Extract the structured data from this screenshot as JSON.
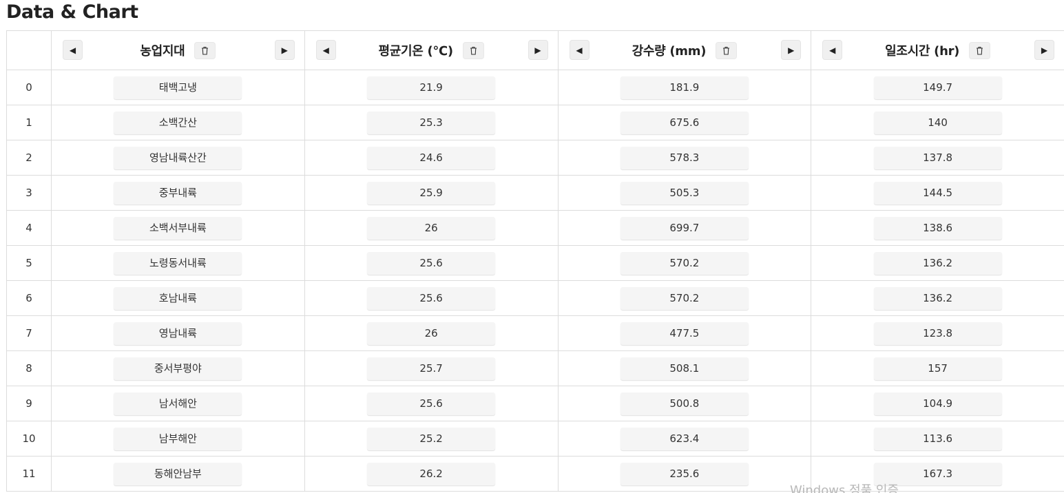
{
  "page": {
    "title": "Data & Chart"
  },
  "table": {
    "columns": [
      {
        "label": "농업지대"
      },
      {
        "label": "평균기온 (℃)"
      },
      {
        "label": "강수량 (mm)"
      },
      {
        "label": "일조시간 (hr)"
      }
    ],
    "rows": [
      {
        "index": "0",
        "cells": [
          "태백고냉",
          "21.9",
          "181.9",
          "149.7"
        ]
      },
      {
        "index": "1",
        "cells": [
          "소백간산",
          "25.3",
          "675.6",
          "140"
        ]
      },
      {
        "index": "2",
        "cells": [
          "영남내륙산간",
          "24.6",
          "578.3",
          "137.8"
        ]
      },
      {
        "index": "3",
        "cells": [
          "중부내륙",
          "25.9",
          "505.3",
          "144.5"
        ]
      },
      {
        "index": "4",
        "cells": [
          "소백서부내륙",
          "26",
          "699.7",
          "138.6"
        ]
      },
      {
        "index": "5",
        "cells": [
          "노령동서내륙",
          "25.6",
          "570.2",
          "136.2"
        ]
      },
      {
        "index": "6",
        "cells": [
          "호남내륙",
          "25.6",
          "570.2",
          "136.2"
        ]
      },
      {
        "index": "7",
        "cells": [
          "영남내륙",
          "26",
          "477.5",
          "123.8"
        ]
      },
      {
        "index": "8",
        "cells": [
          "중서부평야",
          "25.7",
          "508.1",
          "157"
        ]
      },
      {
        "index": "9",
        "cells": [
          "남서해안",
          "25.6",
          "500.8",
          "104.9"
        ]
      },
      {
        "index": "10",
        "cells": [
          "남부해안",
          "25.2",
          "623.4",
          "113.6"
        ]
      },
      {
        "index": "11",
        "cells": [
          "동해안남부",
          "26.2",
          "235.6",
          "167.3"
        ]
      }
    ]
  },
  "icons": {
    "prev": "◀",
    "next": "▶",
    "delete": "trash-icon"
  },
  "watermark": "Windows 정품 인증",
  "colors": {
    "border": "#dcdcdc",
    "button_bg": "#f0f0f0",
    "pill_bg": "#f5f5f5",
    "text": "#222222",
    "watermark": "#b8b8b8"
  }
}
